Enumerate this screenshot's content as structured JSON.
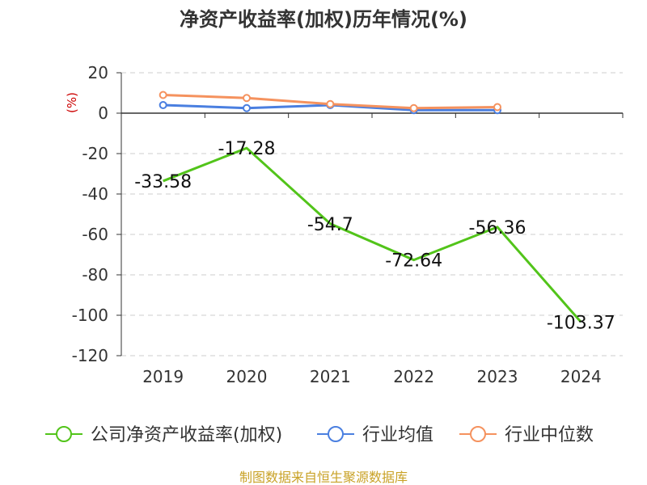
{
  "chart_data": {
    "type": "line",
    "title": "净资产收益率(加权)历年情况(%)",
    "ylabel": "(%)",
    "categories": [
      "2019",
      "2020",
      "2021",
      "2022",
      "2023",
      "2024"
    ],
    "ylim": [
      -120,
      20
    ],
    "yticks": [
      20,
      0,
      -20,
      -40,
      -60,
      -80,
      -100,
      -120
    ],
    "series": [
      {
        "name": "公司净资产收益率(加权)",
        "color": "#52c41a",
        "values": [
          -33.58,
          -17.28,
          -54.7,
          -72.64,
          -56.36,
          -103.37
        ],
        "labels": [
          "-33.58",
          "-17.28",
          "-54.7",
          "-72.64",
          "-56.36",
          "-103.37"
        ]
      },
      {
        "name": "行业均值",
        "color": "#4a7fe0",
        "values": [
          4.0,
          2.5,
          4.0,
          1.5,
          1.5,
          null
        ]
      },
      {
        "name": "行业中位数",
        "color": "#f5925e",
        "values": [
          9.0,
          7.5,
          4.5,
          2.5,
          3.0,
          null
        ]
      }
    ],
    "source": "制图数据来自恒生聚源数据库"
  }
}
